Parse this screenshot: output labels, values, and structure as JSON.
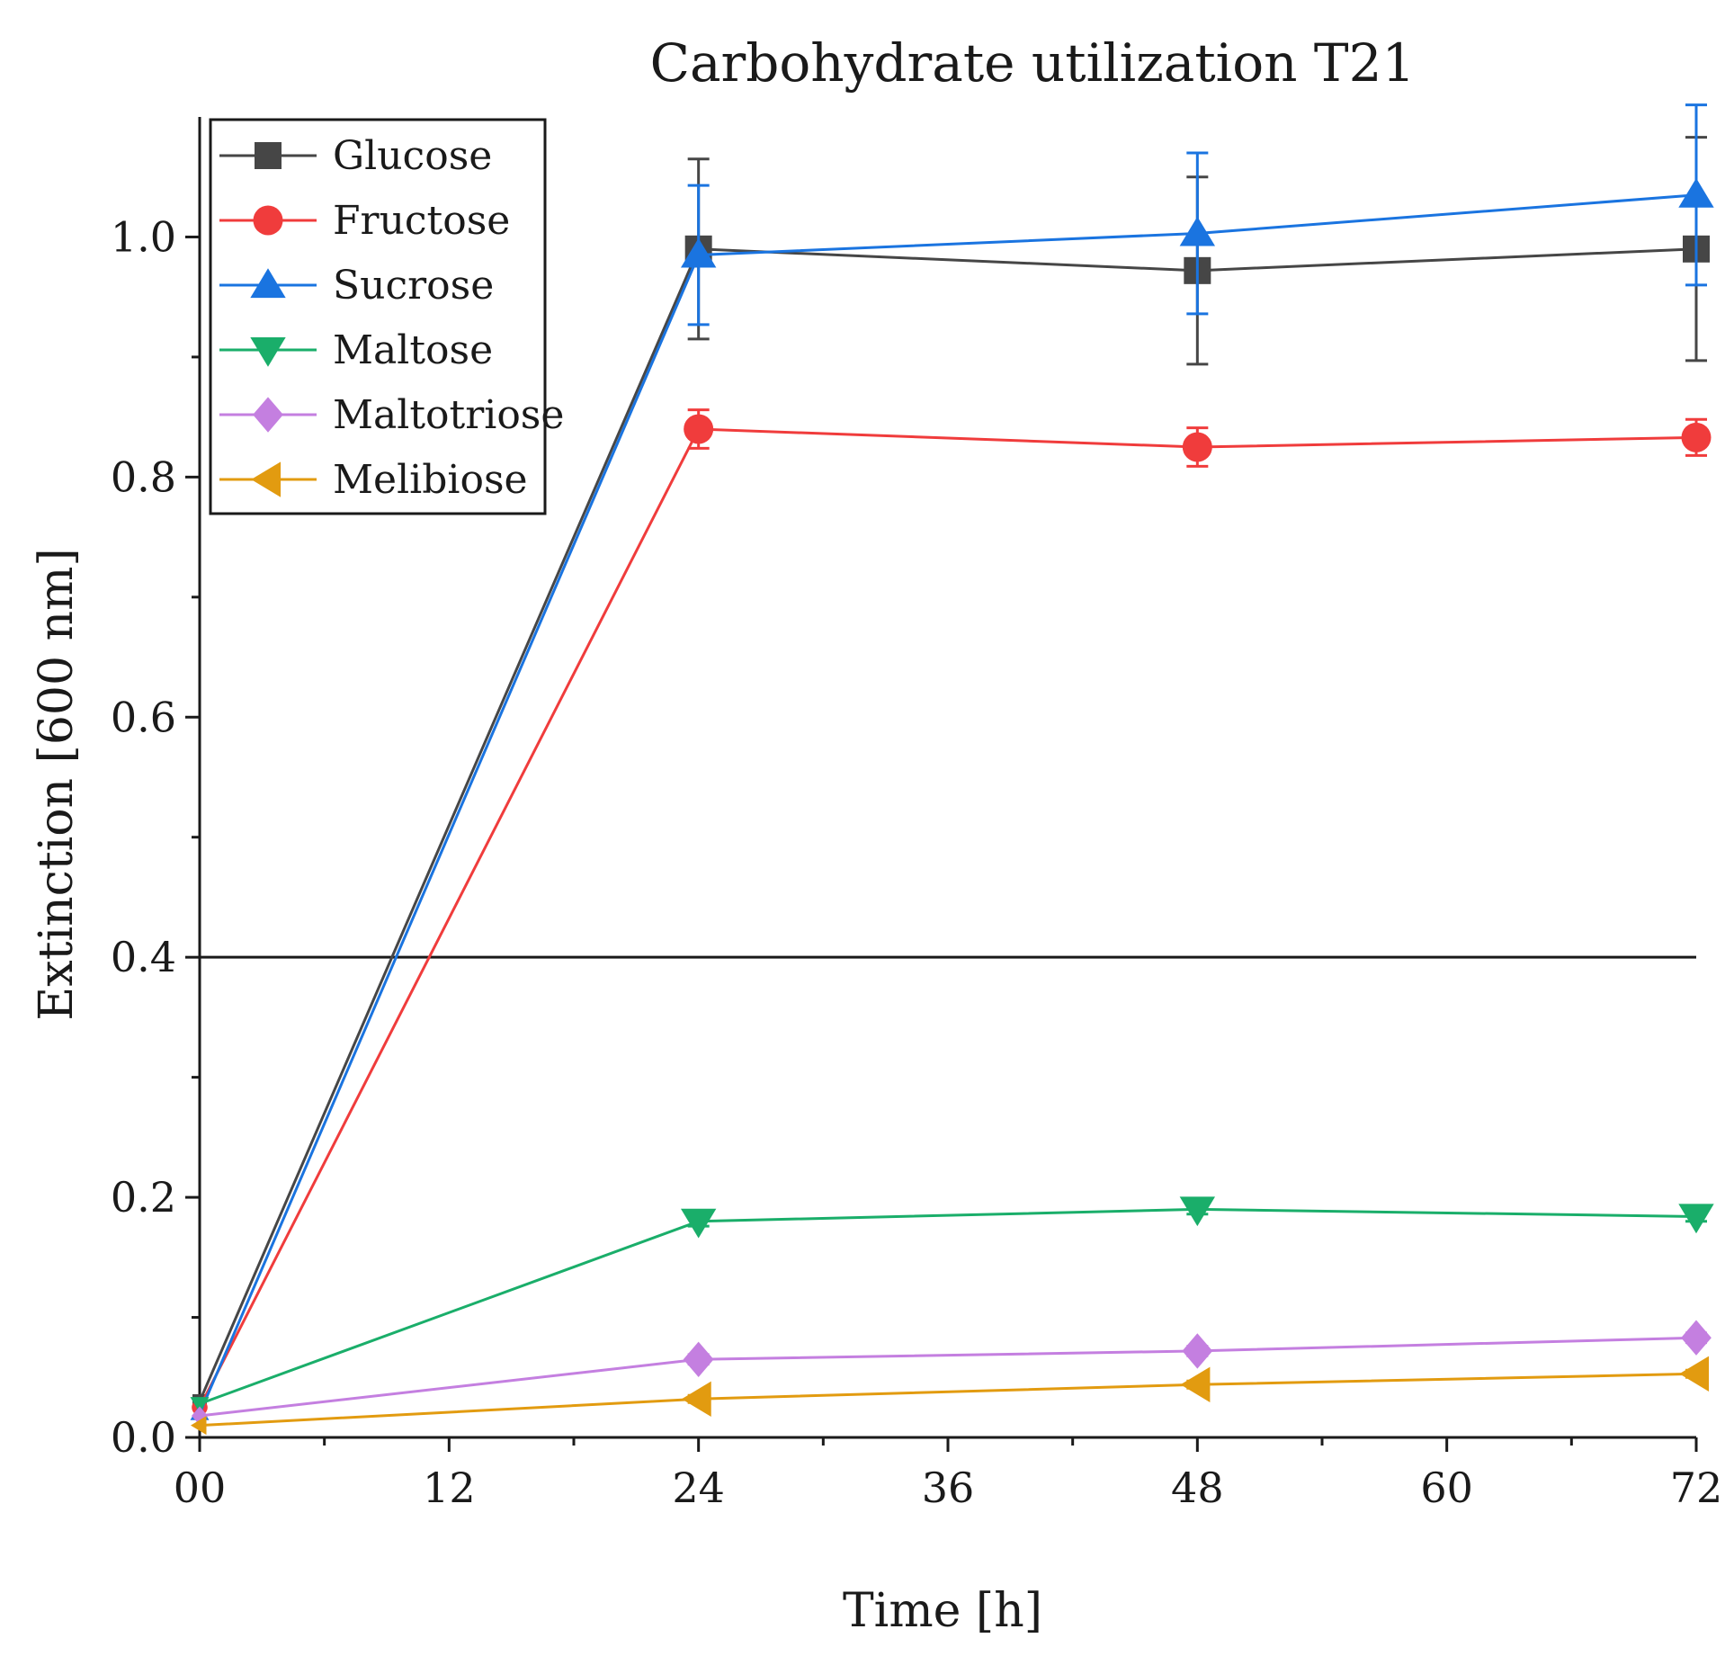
{
  "chart_data": {
    "type": "line",
    "title": "Carbohydrate utilization T21",
    "xlabel": "Time [h]",
    "ylabel": "Extinction [600 nm]",
    "xlim": [
      0,
      72
    ],
    "ylim": [
      0,
      1.1
    ],
    "x_ticks": [
      0,
      12,
      24,
      36,
      48,
      60,
      72
    ],
    "x_tick_labels": [
      "00",
      "12",
      "24",
      "36",
      "48",
      "60",
      "72"
    ],
    "y_ticks": [
      0.0,
      0.2,
      0.4,
      0.6,
      0.8,
      1.0
    ],
    "y_tick_labels": [
      "0.0",
      "0.2",
      "0.4",
      "0.6",
      "0.8",
      "1.0"
    ],
    "y_minor_ticks": [
      0.1,
      0.3,
      0.5,
      0.7,
      0.9
    ],
    "x_minor_ticks": [
      6,
      18,
      30,
      42,
      54,
      66
    ],
    "reference_line": 0.4,
    "grid": false,
    "legend_position": "top-left",
    "x": [
      0,
      24,
      48,
      72
    ],
    "series": [
      {
        "name": "Glucose",
        "color": "#464646",
        "marker": "square",
        "values": [
          0.03,
          0.99,
          0.972,
          0.99
        ],
        "errors": [
          0,
          0.075,
          0.078,
          0.093
        ]
      },
      {
        "name": "Fructose",
        "color": "#f03c3c",
        "marker": "circle",
        "values": [
          0.025,
          0.84,
          0.825,
          0.833
        ],
        "errors": [
          0,
          0.016,
          0.016,
          0.015
        ]
      },
      {
        "name": "Sucrose",
        "color": "#1a74e0",
        "marker": "triangle-up",
        "values": [
          0.02,
          0.985,
          1.003,
          1.035
        ],
        "errors": [
          0,
          0.058,
          0.067,
          0.075
        ]
      },
      {
        "name": "Maltose",
        "color": "#1aae6a",
        "marker": "triangle-down",
        "values": [
          0.028,
          0.18,
          0.19,
          0.184
        ],
        "errors": [
          0,
          0.004,
          0.004,
          0.004
        ]
      },
      {
        "name": "Maltotriose",
        "color": "#c47fe0",
        "marker": "diamond",
        "values": [
          0.018,
          0.065,
          0.072,
          0.083
        ],
        "errors": [
          0,
          0.004,
          0.004,
          0.004
        ]
      },
      {
        "name": "Melibiose",
        "color": "#e29b10",
        "marker": "triangle-left",
        "values": [
          0.01,
          0.032,
          0.044,
          0.053
        ],
        "errors": [
          0,
          0.003,
          0.003,
          0.003
        ]
      }
    ]
  }
}
